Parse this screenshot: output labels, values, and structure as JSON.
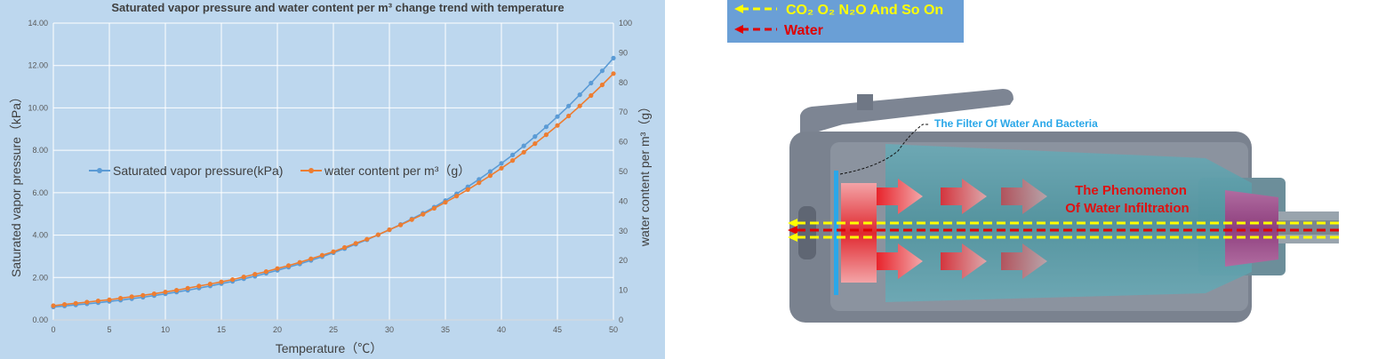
{
  "chart_data": {
    "type": "line",
    "title": "Saturated vapor pressure and water content per m³ change trend with temperature",
    "xlabel": "Temperature（℃）",
    "ylabel_left": "Saturated vapor pressure（kPa）",
    "ylabel_right": "water content per m³（g）",
    "x_range": [
      0,
      50
    ],
    "y_left_range": [
      0,
      14
    ],
    "y_right_range": [
      0,
      100
    ],
    "x_ticks": [
      "0",
      "5",
      "10",
      "15",
      "20",
      "25",
      "30",
      "35",
      "40",
      "45",
      "50"
    ],
    "y_left_ticks": [
      "0.00",
      "2.00",
      "4.00",
      "6.00",
      "8.00",
      "10.00",
      "12.00",
      "14.00"
    ],
    "y_right_ticks": [
      "0",
      "10",
      "20",
      "30",
      "40",
      "50",
      "60",
      "70",
      "80",
      "90",
      "100"
    ],
    "grid": true,
    "legend_position": "middle-left",
    "x": [
      0,
      1,
      2,
      3,
      4,
      5,
      6,
      7,
      8,
      9,
      10,
      11,
      12,
      13,
      14,
      15,
      16,
      17,
      18,
      19,
      20,
      21,
      22,
      23,
      24,
      25,
      26,
      27,
      28,
      29,
      30,
      31,
      32,
      33,
      34,
      35,
      36,
      37,
      38,
      39,
      40,
      41,
      42,
      43,
      44,
      45,
      46,
      47,
      48,
      49,
      50
    ],
    "series": [
      {
        "name": "Saturated vapor pressure(kPa)",
        "axis": "left",
        "color": "#5b9bd5",
        "values": [
          0.61,
          0.66,
          0.71,
          0.76,
          0.81,
          0.87,
          0.93,
          1.0,
          1.07,
          1.15,
          1.23,
          1.31,
          1.4,
          1.5,
          1.6,
          1.71,
          1.82,
          1.94,
          2.06,
          2.2,
          2.34,
          2.49,
          2.64,
          2.81,
          2.98,
          3.17,
          3.36,
          3.57,
          3.78,
          4.01,
          4.25,
          4.5,
          4.76,
          5.03,
          5.32,
          5.63,
          5.95,
          6.28,
          6.63,
          7.0,
          7.38,
          7.78,
          8.21,
          8.65,
          9.11,
          9.59,
          10.09,
          10.62,
          11.17,
          11.75,
          12.35
        ]
      },
      {
        "name": "water content per m³（g）",
        "axis": "right",
        "color": "#ed7d31",
        "values": [
          4.8,
          5.2,
          5.6,
          6.0,
          6.4,
          6.8,
          7.3,
          7.8,
          8.3,
          8.8,
          9.4,
          10.0,
          10.7,
          11.4,
          12.1,
          12.8,
          13.6,
          14.5,
          15.4,
          16.3,
          17.3,
          18.3,
          19.4,
          20.6,
          21.8,
          23.0,
          24.4,
          25.8,
          27.2,
          28.7,
          30.4,
          32.0,
          33.8,
          35.6,
          37.6,
          39.6,
          41.7,
          43.9,
          46.2,
          48.6,
          51.1,
          53.7,
          56.5,
          59.4,
          62.4,
          65.5,
          68.7,
          72.1,
          75.6,
          79.2,
          83.0
        ]
      }
    ]
  },
  "diagram": {
    "legend_gas": "CO₂ O₂ N₂O And So On",
    "legend_water": "Water",
    "filter_label": "The Filter Of Water And Bacteria",
    "phenomenon_line1": "The Phenomenon",
    "phenomenon_line2": "Of Water Infiltration",
    "colors": {
      "legend_box": "#6a9fd6",
      "gas_arrow": "#ffff00",
      "water_arrow": "#e00000",
      "filter_label": "#2aa7e8",
      "phenomenon_text": "#e01010"
    }
  }
}
